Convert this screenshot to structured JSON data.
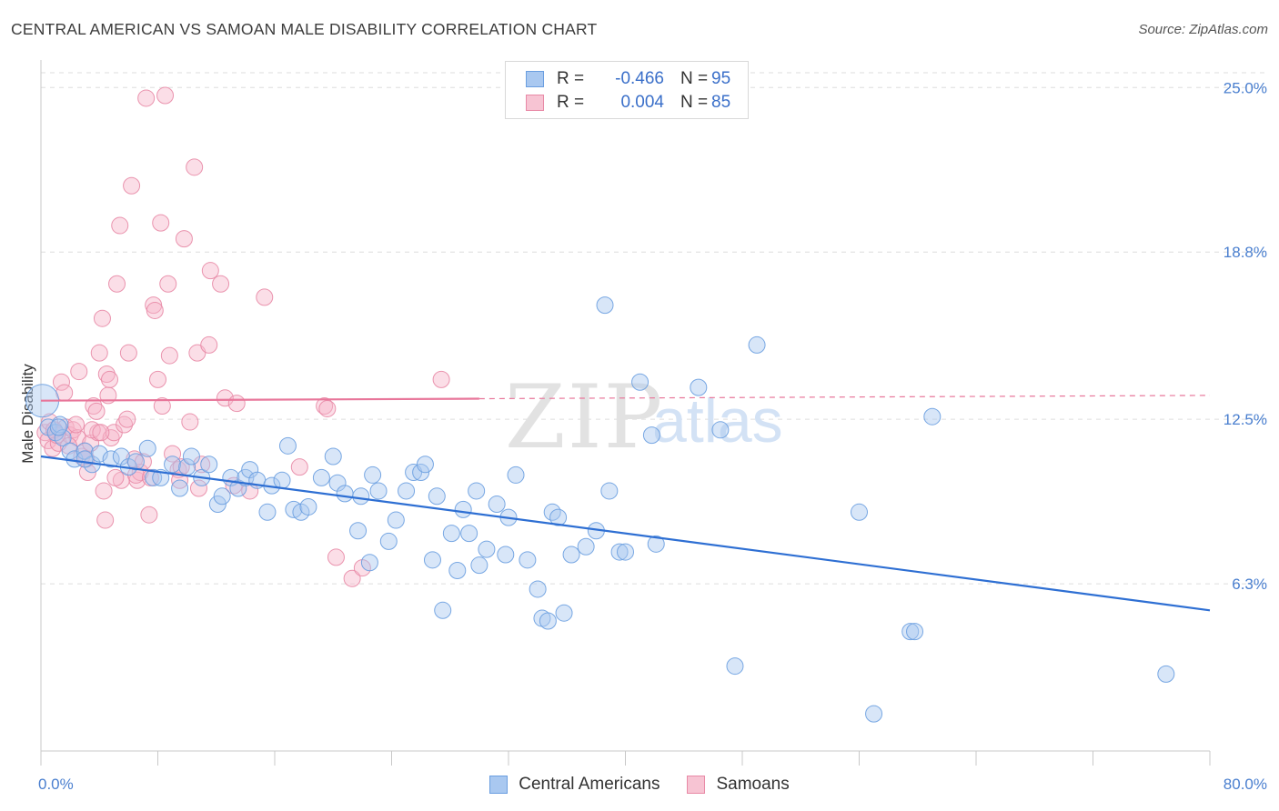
{
  "title": "CENTRAL AMERICAN VS SAMOAN MALE DISABILITY CORRELATION CHART",
  "source": "Source: ZipAtlas.com",
  "watermark": {
    "zip": "ZIP",
    "atlas": "atlas"
  },
  "colors": {
    "blue_fill": "#a9c8f0",
    "blue_stroke": "#6a9ee0",
    "blue_line": "#2e6fd3",
    "pink_fill": "#f7b6c9",
    "pink_stroke": "#e889a6",
    "pink_line": "#e8769a",
    "grid": "#dddddd",
    "tick_text": "#4a7fcf"
  },
  "legend": {
    "rows": [
      {
        "r_label": "R =",
        "r_value": "-0.466",
        "n_label": "N =",
        "n_value": "95"
      },
      {
        "r_label": "R =",
        "r_value": "0.004",
        "n_label": "N =",
        "n_value": "85"
      }
    ]
  },
  "bottom_legend": [
    "Central Americans",
    "Samoans"
  ],
  "chart_data": {
    "type": "scatter",
    "title": "CENTRAL AMERICAN VS SAMOAN MALE DISABILITY CORRELATION CHART",
    "xlabel": "",
    "ylabel": "Male Disability",
    "xlim": [
      0,
      80
    ],
    "ylim": [
      0,
      25.9
    ],
    "x_tick_labels": [
      {
        "value": 0,
        "label": "0.0%"
      },
      {
        "value": 80,
        "label": "80.0%"
      }
    ],
    "x_minor_ticks": [
      0,
      8,
      16,
      24,
      32,
      40,
      48,
      56,
      64,
      72,
      80
    ],
    "y_ticks": [
      {
        "value": 6.3,
        "label": "6.3%"
      },
      {
        "value": 12.5,
        "label": "12.5%"
      },
      {
        "value": 18.8,
        "label": "18.8%"
      },
      {
        "value": 25.0,
        "label": "25.0%"
      }
    ],
    "series": [
      {
        "name": "Central Americans",
        "color": "blue",
        "r": -0.466,
        "n": 95,
        "trend": {
          "x": [
            0,
            80
          ],
          "y": [
            11.1,
            5.3
          ],
          "dashed_from": null
        },
        "points": [
          [
            0.1,
            13.2
          ],
          [
            0.5,
            12.2
          ],
          [
            1.0,
            12.0
          ],
          [
            1.3,
            12.3
          ],
          [
            1.5,
            11.8
          ],
          [
            2.0,
            11.3
          ],
          [
            2.3,
            11.0
          ],
          [
            3.0,
            11.3
          ],
          [
            3.5,
            10.8
          ],
          [
            4.0,
            11.2
          ],
          [
            4.8,
            11.0
          ],
          [
            5.5,
            11.1
          ],
          [
            6.0,
            10.7
          ],
          [
            6.5,
            10.9
          ],
          [
            7.3,
            11.4
          ],
          [
            7.7,
            10.3
          ],
          [
            8.2,
            10.3
          ],
          [
            9.0,
            10.8
          ],
          [
            9.5,
            9.9
          ],
          [
            10.0,
            10.7
          ],
          [
            10.3,
            11.1
          ],
          [
            11.0,
            10.3
          ],
          [
            11.5,
            10.8
          ],
          [
            12.1,
            9.3
          ],
          [
            12.4,
            9.6
          ],
          [
            13.0,
            10.3
          ],
          [
            13.5,
            9.9
          ],
          [
            14.0,
            10.3
          ],
          [
            14.3,
            10.6
          ],
          [
            14.8,
            10.2
          ],
          [
            15.5,
            9.0
          ],
          [
            15.8,
            10.0
          ],
          [
            16.5,
            10.2
          ],
          [
            16.9,
            11.5
          ],
          [
            17.3,
            9.1
          ],
          [
            17.8,
            9.0
          ],
          [
            18.3,
            9.2
          ],
          [
            19.2,
            10.3
          ],
          [
            20.0,
            11.1
          ],
          [
            20.3,
            10.1
          ],
          [
            20.8,
            9.7
          ],
          [
            21.7,
            8.3
          ],
          [
            21.9,
            9.6
          ],
          [
            22.5,
            7.1
          ],
          [
            22.7,
            10.4
          ],
          [
            23.1,
            9.8
          ],
          [
            23.8,
            7.9
          ],
          [
            24.3,
            8.7
          ],
          [
            25.0,
            9.8
          ],
          [
            25.5,
            10.5
          ],
          [
            26.0,
            10.5
          ],
          [
            26.3,
            10.8
          ],
          [
            26.8,
            7.2
          ],
          [
            27.1,
            9.6
          ],
          [
            27.5,
            5.3
          ],
          [
            28.1,
            8.2
          ],
          [
            28.5,
            6.8
          ],
          [
            28.9,
            9.1
          ],
          [
            29.3,
            8.2
          ],
          [
            29.8,
            9.8
          ],
          [
            30.0,
            7.0
          ],
          [
            30.5,
            7.6
          ],
          [
            31.2,
            9.3
          ],
          [
            31.8,
            7.4
          ],
          [
            32.0,
            8.8
          ],
          [
            32.5,
            10.4
          ],
          [
            33.3,
            7.2
          ],
          [
            34.0,
            6.1
          ],
          [
            34.3,
            5.0
          ],
          [
            34.7,
            4.9
          ],
          [
            35.0,
            9.0
          ],
          [
            35.4,
            8.8
          ],
          [
            35.8,
            5.2
          ],
          [
            36.3,
            7.4
          ],
          [
            37.3,
            7.7
          ],
          [
            38.0,
            8.3
          ],
          [
            38.6,
            16.8
          ],
          [
            38.9,
            9.8
          ],
          [
            39.6,
            7.5
          ],
          [
            40.0,
            7.5
          ],
          [
            41.0,
            13.9
          ],
          [
            41.8,
            11.9
          ],
          [
            42.1,
            7.8
          ],
          [
            45.0,
            13.7
          ],
          [
            46.5,
            12.1
          ],
          [
            47.5,
            3.2
          ],
          [
            49.0,
            15.3
          ],
          [
            56.0,
            9.0
          ],
          [
            57.0,
            1.4
          ],
          [
            59.5,
            4.5
          ],
          [
            59.8,
            4.5
          ],
          [
            61.0,
            12.6
          ],
          [
            77.0,
            2.9
          ],
          [
            1.2,
            12.2
          ],
          [
            3.0,
            11.0
          ]
        ]
      },
      {
        "name": "Samoans",
        "color": "pink",
        "r": 0.004,
        "n": 85,
        "trend": {
          "x": [
            0,
            80
          ],
          "y": [
            13.2,
            13.4
          ],
          "dashed_from": 30
        },
        "points": [
          [
            0.3,
            12.0
          ],
          [
            0.5,
            11.7
          ],
          [
            0.6,
            12.4
          ],
          [
            0.8,
            11.4
          ],
          [
            1.0,
            12.0
          ],
          [
            1.2,
            11.6
          ],
          [
            1.4,
            13.9
          ],
          [
            1.6,
            13.5
          ],
          [
            1.7,
            12.2
          ],
          [
            2.0,
            11.9
          ],
          [
            2.2,
            12.1
          ],
          [
            2.5,
            11.8
          ],
          [
            2.6,
            14.3
          ],
          [
            2.8,
            11.1
          ],
          [
            3.0,
            11.3
          ],
          [
            3.1,
            11.0
          ],
          [
            3.2,
            10.5
          ],
          [
            3.4,
            11.6
          ],
          [
            3.6,
            13.0
          ],
          [
            3.8,
            12.8
          ],
          [
            3.9,
            12.0
          ],
          [
            4.0,
            15.0
          ],
          [
            4.2,
            16.3
          ],
          [
            4.3,
            9.8
          ],
          [
            4.4,
            8.7
          ],
          [
            4.5,
            14.2
          ],
          [
            4.6,
            13.4
          ],
          [
            4.7,
            14.0
          ],
          [
            4.8,
            11.8
          ],
          [
            5.0,
            12.0
          ],
          [
            5.2,
            17.6
          ],
          [
            5.4,
            19.8
          ],
          [
            5.5,
            10.2
          ],
          [
            5.7,
            12.3
          ],
          [
            5.9,
            12.5
          ],
          [
            6.0,
            15.0
          ],
          [
            6.2,
            21.3
          ],
          [
            6.4,
            11.0
          ],
          [
            6.6,
            10.2
          ],
          [
            6.8,
            10.5
          ],
          [
            7.0,
            10.9
          ],
          [
            7.2,
            24.6
          ],
          [
            7.4,
            8.9
          ],
          [
            7.7,
            16.8
          ],
          [
            7.8,
            16.6
          ],
          [
            8.0,
            14.0
          ],
          [
            8.2,
            19.9
          ],
          [
            8.5,
            24.7
          ],
          [
            8.7,
            17.6
          ],
          [
            8.8,
            14.9
          ],
          [
            9.0,
            11.2
          ],
          [
            9.4,
            10.6
          ],
          [
            9.5,
            10.2
          ],
          [
            9.6,
            10.7
          ],
          [
            9.8,
            19.3
          ],
          [
            10.2,
            12.4
          ],
          [
            10.5,
            22.0
          ],
          [
            10.7,
            15.0
          ],
          [
            10.8,
            9.9
          ],
          [
            11.0,
            10.8
          ],
          [
            11.5,
            15.3
          ],
          [
            11.6,
            18.1
          ],
          [
            12.3,
            17.6
          ],
          [
            12.6,
            13.3
          ],
          [
            13.2,
            10.0
          ],
          [
            13.4,
            13.1
          ],
          [
            14.3,
            9.8
          ],
          [
            15.3,
            17.1
          ],
          [
            17.7,
            10.7
          ],
          [
            19.4,
            13.0
          ],
          [
            19.6,
            12.9
          ],
          [
            20.2,
            7.3
          ],
          [
            21.3,
            6.5
          ],
          [
            22.0,
            6.9
          ],
          [
            27.4,
            14.0
          ],
          [
            0.9,
            12.1
          ],
          [
            1.9,
            11.5
          ],
          [
            2.4,
            12.3
          ],
          [
            3.5,
            12.1
          ],
          [
            4.1,
            12.0
          ],
          [
            5.1,
            10.3
          ],
          [
            6.5,
            10.4
          ],
          [
            7.5,
            10.3
          ],
          [
            8.3,
            13.0
          ],
          [
            1.1,
            11.9
          ]
        ]
      }
    ]
  }
}
